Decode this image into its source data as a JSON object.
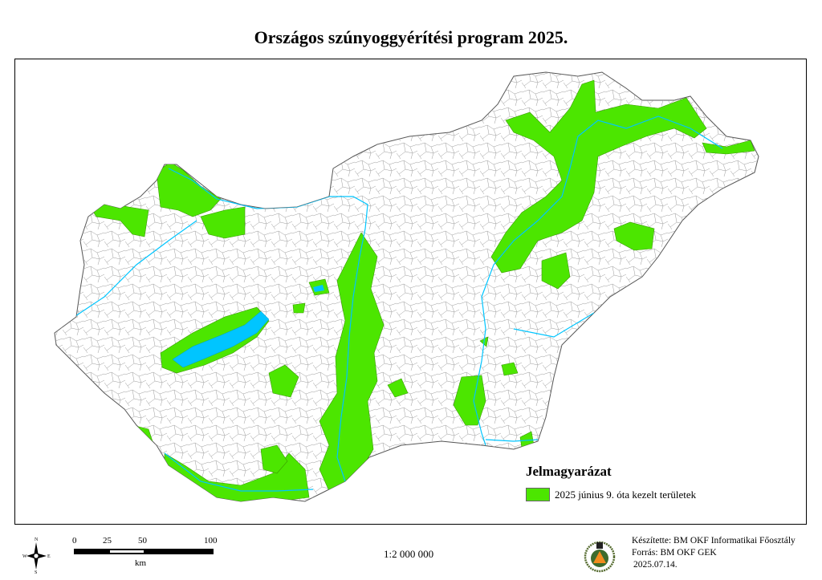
{
  "title": "Országos szúnyoggyérítési program 2025.",
  "legend": {
    "title": "Jelmagyarázat",
    "items": [
      {
        "label": "2025 június 9. óta kezelt területek",
        "color": "#4ce600"
      }
    ]
  },
  "compass": {
    "n": "N",
    "s": "S",
    "e": "E",
    "w": "W"
  },
  "scalebar": {
    "ticks": [
      "0",
      "25",
      "50",
      "100"
    ],
    "unit": "km"
  },
  "scale": "1:2 000 000",
  "credits": {
    "made_by": "Készítette: BM OKF Informatikai Főosztály",
    "source": "Forrás: BM OKF GEK",
    "date": "2025.07.14."
  },
  "colors": {
    "treated": "#4ce600",
    "water": "#00c5ff",
    "boundary": "#8a8a8a"
  }
}
